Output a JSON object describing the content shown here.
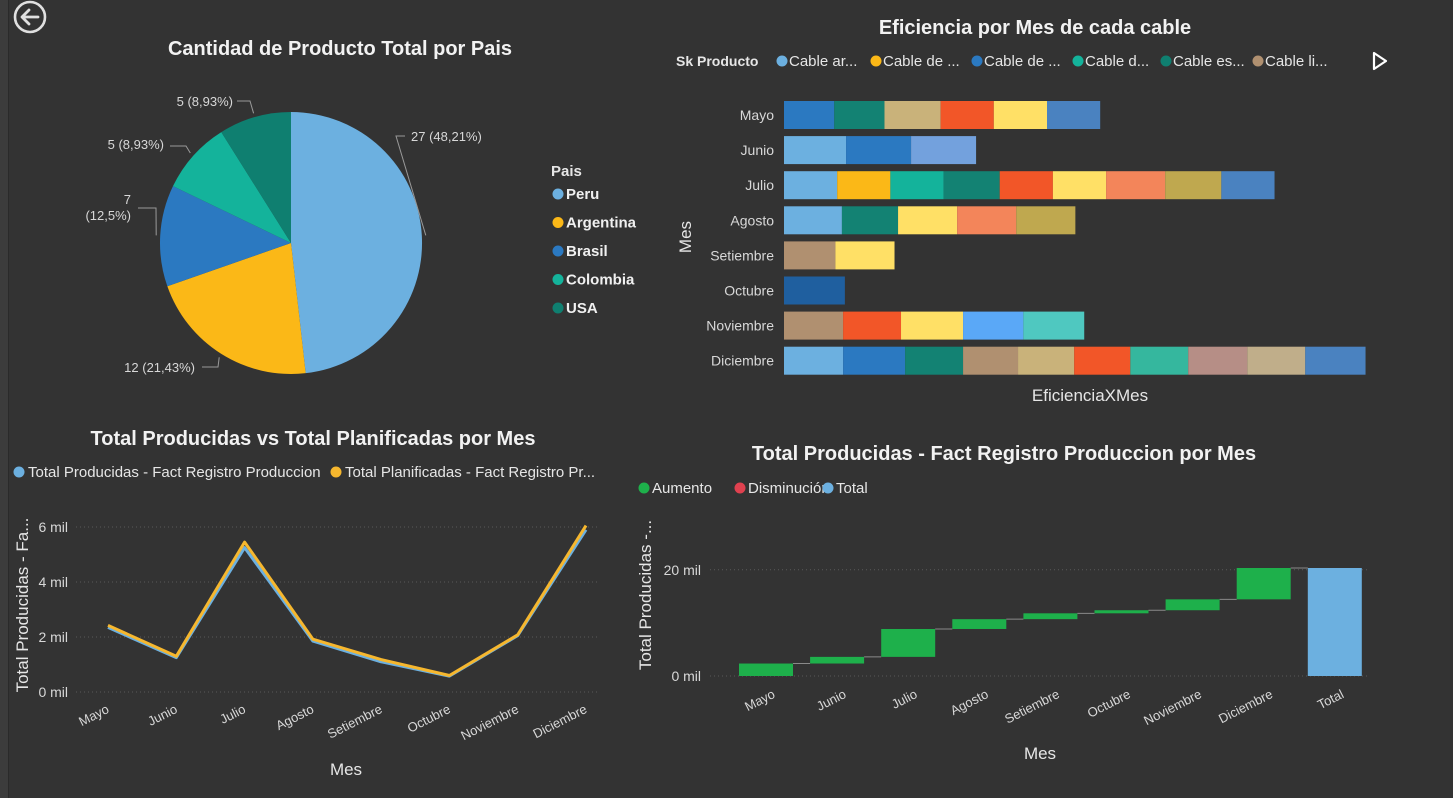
{
  "colors": {
    "bg": "#333333",
    "peru": "#6cb0e0",
    "argentina": "#fbb817",
    "brasil": "#2b79c1",
    "colombia": "#14b39b",
    "usa": "#0f7f70",
    "aumento": "#1eb04b",
    "disminucion": "#e0414f",
    "total": "#6cb0e0",
    "producidas": "#6cb0e0",
    "planificadas": "#f6b72e"
  },
  "nav": {
    "back_icon": "back-arrow-icon"
  },
  "pie": {
    "title": "Cantidad de Producto Total por Pais",
    "legend_title": "Pais",
    "chart_data": {
      "type": "pie",
      "title": "Cantidad de Producto Total por Pais",
      "slices": [
        {
          "name": "Peru",
          "value": 27,
          "label": "27 (48,21%)",
          "color": "#6cb0e0"
        },
        {
          "name": "Argentina",
          "value": 12,
          "label": "12 (21,43%)",
          "color": "#fbb817"
        },
        {
          "name": "Brasil",
          "value": 7,
          "label": "7",
          "label2": "(12,5%)",
          "color": "#2b79c1"
        },
        {
          "name": "Colombia",
          "value": 5,
          "label": "5 (8,93%)",
          "color": "#14b39b"
        },
        {
          "name": "USA",
          "value": 5,
          "label": "5 (8,93%)",
          "color": "#0f7f70"
        }
      ]
    }
  },
  "bar": {
    "title": "Eficiencia por Mes de cada cable",
    "legend_title": "Sk Producto",
    "legend_items": [
      {
        "label": "Cable ar...",
        "color": "#6cb0e0"
      },
      {
        "label": "Cable de ...",
        "color": "#fbb817"
      },
      {
        "label": "Cable de ...",
        "color": "#2b79c1"
      },
      {
        "label": "Cable d...",
        "color": "#14b39b"
      },
      {
        "label": "Cable es...",
        "color": "#0f7f70"
      },
      {
        "label": "Cable li...",
        "color": "#b09070"
      }
    ],
    "chart_data": {
      "type": "bar",
      "orientation": "horizontal",
      "stacked": true,
      "title": "Eficiencia por Mes de cada cable",
      "xlabel": "EficienciaXMes",
      "ylabel": "Mes",
      "categories": [
        "Mayo",
        "Junio",
        "Julio",
        "Agosto",
        "Setiembre",
        "Octubre",
        "Noviembre",
        "Diciembre"
      ],
      "segments": [
        [
          {
            "v": 0.85,
            "c": "#2b79c1"
          },
          {
            "v": 0.85,
            "c": "#138273"
          },
          {
            "v": 0.95,
            "c": "#c9b27a"
          },
          {
            "v": 0.9,
            "c": "#f25628"
          },
          {
            "v": 0.9,
            "c": "#ffe066"
          },
          {
            "v": 0.9,
            "c": "#4a82c0"
          }
        ],
        [
          {
            "v": 1.05,
            "c": "#6cb0e0"
          },
          {
            "v": 1.1,
            "c": "#2b79c1"
          },
          {
            "v": 1.1,
            "c": "#73a1dd"
          }
        ],
        [
          {
            "v": 0.9,
            "c": "#6cb0e0"
          },
          {
            "v": 0.9,
            "c": "#fbb817"
          },
          {
            "v": 0.9,
            "c": "#14b39b"
          },
          {
            "v": 0.95,
            "c": "#138273"
          },
          {
            "v": 0.9,
            "c": "#f25628"
          },
          {
            "v": 0.9,
            "c": "#ffe066"
          },
          {
            "v": 1.0,
            "c": "#f3855a"
          },
          {
            "v": 0.95,
            "c": "#bfa84f"
          },
          {
            "v": 0.9,
            "c": "#4a82c0"
          }
        ],
        [
          {
            "v": 0.98,
            "c": "#6cb0e0"
          },
          {
            "v": 0.95,
            "c": "#138273"
          },
          {
            "v": 1.0,
            "c": "#ffe066"
          },
          {
            "v": 1.0,
            "c": "#f3855a"
          },
          {
            "v": 1.0,
            "c": "#bfa84f"
          }
        ],
        [
          {
            "v": 0.87,
            "c": "#b09070"
          },
          {
            "v": 1.0,
            "c": "#ffe066"
          }
        ],
        [
          {
            "v": 1.03,
            "c": "#1f5f9f"
          }
        ],
        [
          {
            "v": 1.0,
            "c": "#b09070"
          },
          {
            "v": 0.98,
            "c": "#f25628"
          },
          {
            "v": 1.05,
            "c": "#ffe066"
          },
          {
            "v": 1.02,
            "c": "#5aa8f7"
          },
          {
            "v": 1.03,
            "c": "#4fc8c0"
          }
        ],
        [
          {
            "v": 1.0,
            "c": "#6cb0e0"
          },
          {
            "v": 1.05,
            "c": "#2b79c1"
          },
          {
            "v": 0.98,
            "c": "#138273"
          },
          {
            "v": 0.93,
            "c": "#b09070"
          },
          {
            "v": 0.95,
            "c": "#c9b27a"
          },
          {
            "v": 0.95,
            "c": "#f25628"
          },
          {
            "v": 0.98,
            "c": "#35b79e"
          },
          {
            "v": 1.0,
            "c": "#b68e86"
          },
          {
            "v": 0.98,
            "c": "#c0ae8a"
          },
          {
            "v": 1.02,
            "c": "#4a82c0"
          }
        ]
      ],
      "xlim": [
        0,
        9.8
      ]
    }
  },
  "line": {
    "title": "Total Producidas vs Total Planificadas por Mes",
    "legend_items": [
      {
        "label": "Total Producidas - Fact Registro Produccion",
        "color": "#6cb0e0"
      },
      {
        "label": "Total Planificadas - Fact Registro Pr...",
        "color": "#f6b72e"
      }
    ],
    "chart_data": {
      "type": "line",
      "title": "Total Producidas vs Total Planificadas por Mes",
      "xlabel": "Mes",
      "ylabel": "Total Producidas - Fa...",
      "categories": [
        "Mayo",
        "Junio",
        "Julio",
        "Agosto",
        "Setiembre",
        "Octubre",
        "Noviembre",
        "Diciembre"
      ],
      "yticks": [
        {
          "v": 0,
          "label": "0 mil"
        },
        {
          "v": 2000,
          "label": "2 mil"
        },
        {
          "v": 4000,
          "label": "4 mil"
        },
        {
          "v": 6000,
          "label": "6 mil"
        }
      ],
      "ylim": [
        0,
        6000
      ],
      "series": [
        {
          "name": "Total Producidas - Fact Registro Produccion",
          "color": "#6cb0e0",
          "values": [
            2350,
            1250,
            5250,
            1850,
            1100,
            580,
            2050,
            5900
          ]
        },
        {
          "name": "Total Planificadas - Fact Registro Pr...",
          "color": "#f6b72e",
          "values": [
            2420,
            1300,
            5450,
            1920,
            1180,
            600,
            2080,
            6050
          ]
        }
      ]
    }
  },
  "waterfall": {
    "title": "Total Producidas - Fact Registro Produccion por Mes",
    "legend_items": [
      {
        "label": "Aumento",
        "color": "#1eb04b"
      },
      {
        "label": "Disminución",
        "color": "#e0414f"
      },
      {
        "label": "Total",
        "color": "#6cb0e0"
      }
    ],
    "chart_data": {
      "type": "bar",
      "subtype": "waterfall",
      "title": "Total Producidas - Fact Registro Produccion por Mes",
      "xlabel": "Mes",
      "ylabel": "Total Producidas -...",
      "categories": [
        "Mayo",
        "Junio",
        "Julio",
        "Agosto",
        "Setiembre",
        "Octubre",
        "Noviembre",
        "Diciembre",
        "Total"
      ],
      "values": [
        2350,
        1250,
        5250,
        1850,
        1100,
        580,
        2050,
        5900,
        20330
      ],
      "yticks": [
        {
          "v": 0,
          "label": "0 mil"
        },
        {
          "v": 20000,
          "label": "20 mil"
        }
      ],
      "ylim": [
        0,
        20330
      ]
    }
  }
}
